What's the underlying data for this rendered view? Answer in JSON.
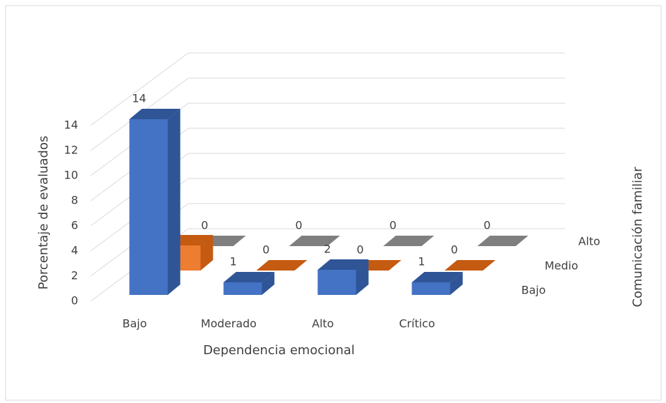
{
  "chart_data": {
    "type": "bar3d",
    "categories": [
      "Bajo",
      "Moderado",
      "Alto",
      "Crítico"
    ],
    "series": [
      {
        "name": "Bajo",
        "color": "#4472c4",
        "top_color": "#2f5597",
        "values": [
          14,
          1,
          2,
          1
        ]
      },
      {
        "name": "Medio",
        "color": "#ed7d31",
        "top_color": "#c55a11",
        "values": [
          2,
          0,
          0,
          0
        ]
      },
      {
        "name": "Alto",
        "color": "#a5a5a5",
        "top_color": "#7f7f7f",
        "values": [
          0,
          0,
          0,
          0
        ]
      }
    ],
    "xlabel": "Dependencia emocional",
    "ylabel": "Porcentaje de evaluados",
    "zlabel": "Comunicación familiar",
    "ylim": [
      0,
      14
    ],
    "yticks": [
      0,
      2,
      4,
      6,
      8,
      10,
      12,
      14
    ],
    "grid": true
  }
}
